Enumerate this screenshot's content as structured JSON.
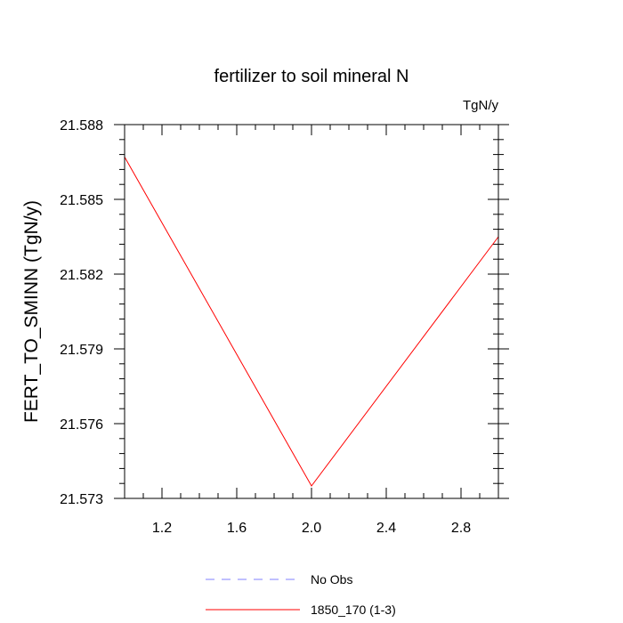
{
  "chart_data": {
    "type": "line",
    "title": "fertilizer to soil mineral N",
    "units": "TgN/y",
    "ylabel": "FERT_TO_SMINN  (TgN/y)",
    "xlabel": "",
    "xlim": [
      1.0,
      3.0
    ],
    "ylim": [
      21.573,
      21.588
    ],
    "x_ticks": [
      "1.2",
      "1.6",
      "2.0",
      "2.4",
      "2.8"
    ],
    "y_ticks": [
      "21.573",
      "21.576",
      "21.579",
      "21.582",
      "21.585",
      "21.588"
    ],
    "grid": false,
    "legend_position": "bottom",
    "series": [
      {
        "name": "No Obs",
        "color": "#8080ff",
        "style": "dashed",
        "x": [],
        "y": []
      },
      {
        "name": "1850_170 (1-3)",
        "color": "#ff0000",
        "style": "solid",
        "x": [
          1.0,
          2.0,
          3.0
        ],
        "y": [
          21.5867,
          21.5735,
          21.5835
        ]
      }
    ]
  }
}
